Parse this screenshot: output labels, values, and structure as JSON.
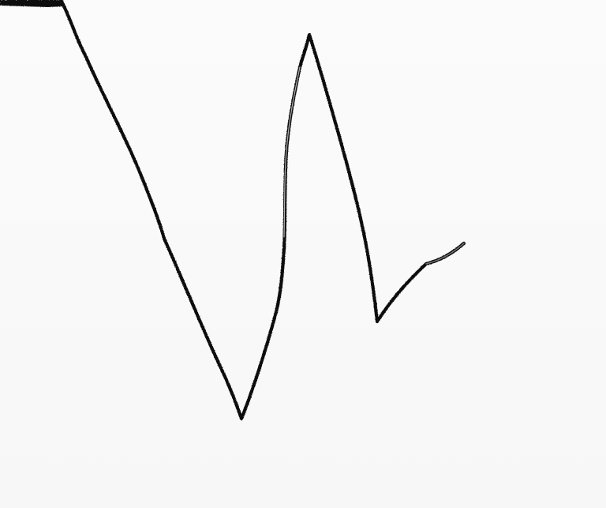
{
  "artwork": {
    "background_color": "#f9f9f9",
    "stroke_color": "#111111",
    "medium": "charcoal-line"
  }
}
